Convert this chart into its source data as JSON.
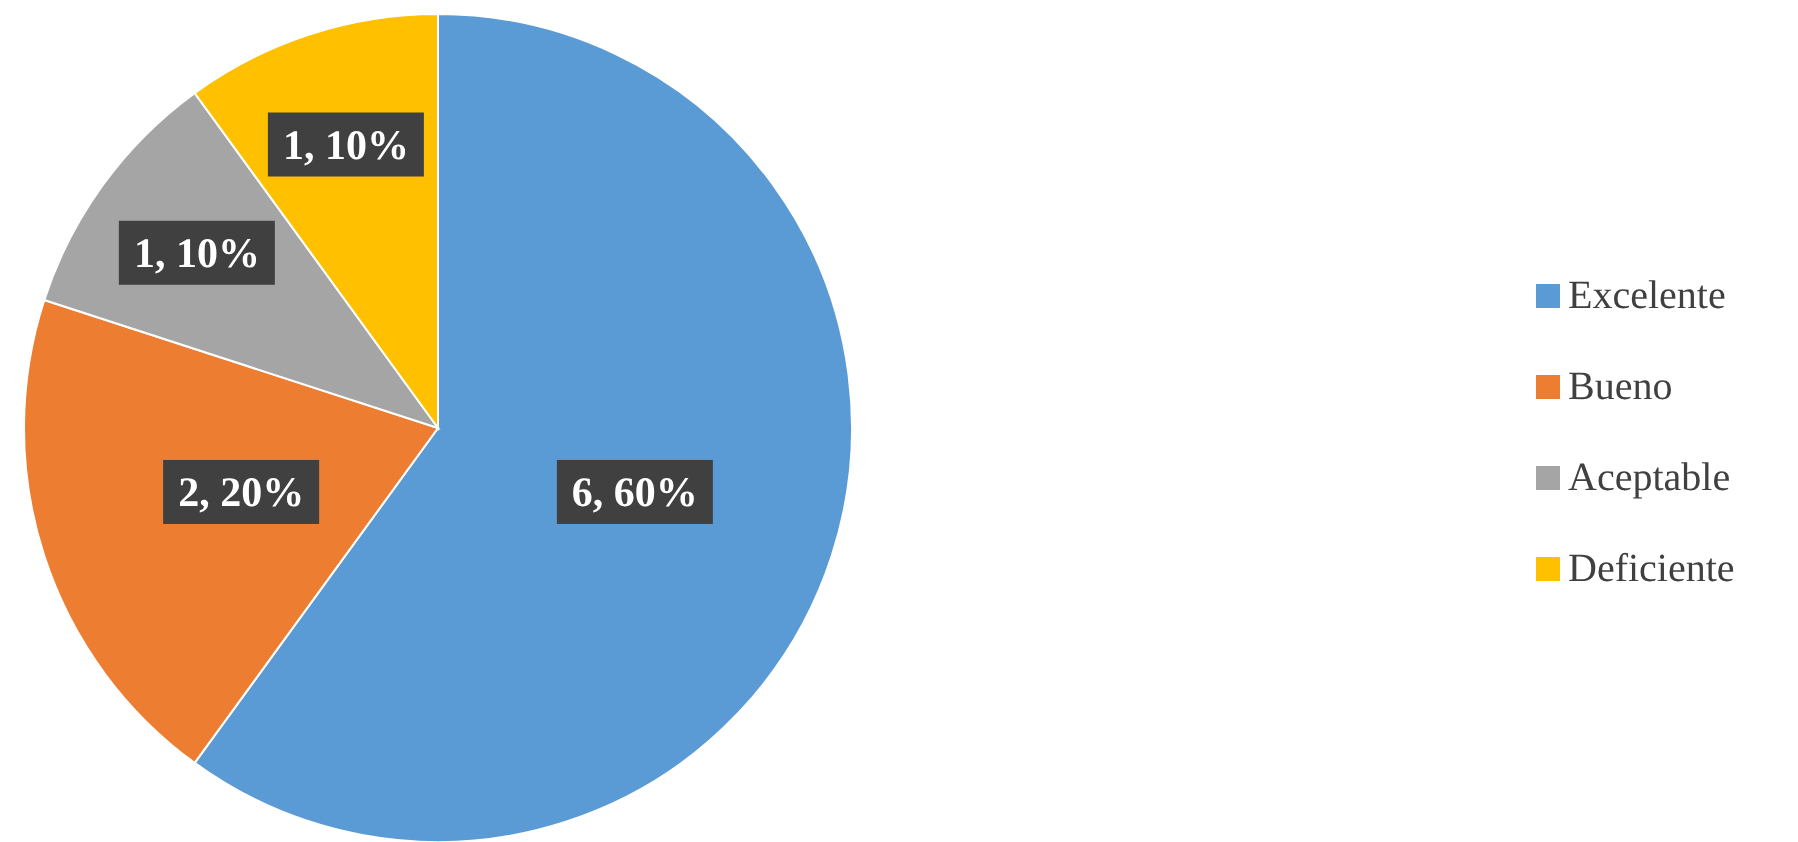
{
  "chart_data": {
    "type": "pie",
    "categories": [
      "Excelente",
      "Bueno",
      "Aceptable",
      "Deficiente"
    ],
    "values": [
      6,
      2,
      1,
      1
    ],
    "colors": [
      "#5b9bd5",
      "#ed7d31",
      "#a5a5a5",
      "#ffc000"
    ],
    "value_labels": [
      "6, 60%",
      "2, 20%",
      "1, 10%",
      "1, 10%"
    ],
    "legend": "right"
  }
}
